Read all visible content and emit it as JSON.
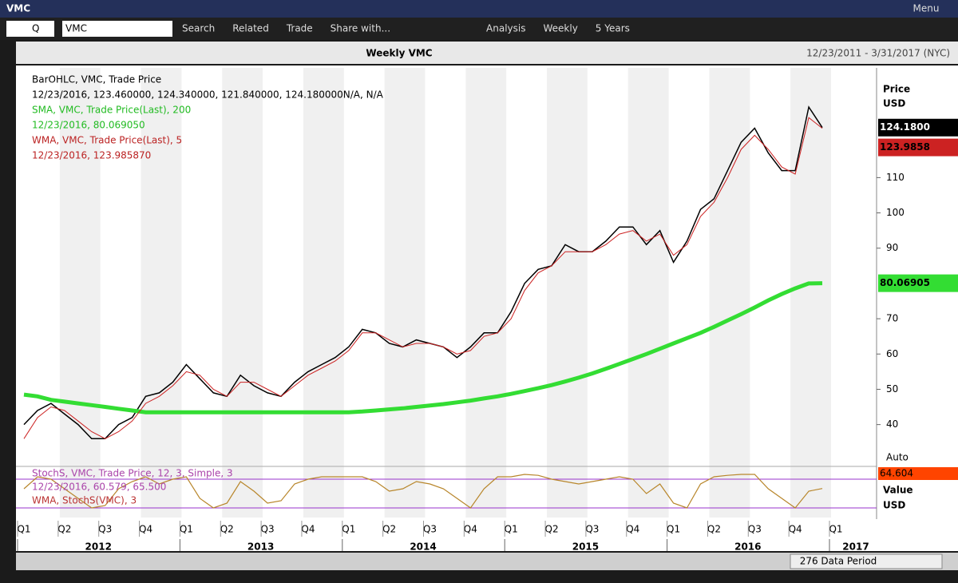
{
  "window": {
    "title": "VMC",
    "menu": "Menu"
  },
  "toolbar": {
    "security_type": "Q",
    "ticker": "VMC",
    "buttons": [
      "Search",
      "Related",
      "Trade",
      "Share with...",
      "Analysis",
      "Weekly",
      "5 Years"
    ]
  },
  "header": {
    "title": "Weekly VMC",
    "range": "12/23/2011 - 3/31/2017 (NYC)"
  },
  "chart_data": {
    "type": "line",
    "legend": [
      "BarOHLC, VMC, Trade Price",
      "12/23/2016, 123.460000, 124.340000, 121.840000, 124.180000N/A, N/A",
      "SMA, VMC, Trade Price(Last), 200",
      "12/23/2016, 80.069050",
      "WMA, VMC, Trade Price(Last), 5",
      "12/23/2016, 123.985870"
    ],
    "y_title": [
      "Price",
      "USD"
    ],
    "categories": [
      "Q1",
      null,
      null,
      "Q2",
      null,
      null,
      "Q3",
      null,
      null,
      "Q4",
      null,
      null,
      "Q1",
      null,
      null,
      "Q2",
      null,
      null,
      "Q3",
      null,
      null,
      "Q4",
      null,
      null,
      "Q1",
      null,
      null,
      "Q2",
      null,
      null,
      "Q3",
      null,
      null,
      "Q4",
      null,
      null,
      "Q1",
      null,
      null,
      "Q2",
      null,
      null,
      "Q3",
      null,
      null,
      "Q4",
      null,
      null,
      "Q1",
      null,
      null,
      "Q2",
      null,
      null,
      "Q3",
      null,
      null,
      "Q4",
      null,
      null,
      "Q1"
    ],
    "years": [
      "2012",
      "2013",
      "2014",
      "2015",
      "2016",
      "2017"
    ],
    "ylim": [
      28.6,
      141.1
    ],
    "yticks": [
      40,
      50,
      60,
      70,
      90,
      100,
      110
    ],
    "series": [
      {
        "name": "VMC",
        "color": "#000000",
        "width": 1.5,
        "tag": "124.1800",
        "values": [
          40,
          44,
          46,
          43,
          40,
          36,
          36,
          40,
          42,
          48,
          49,
          52,
          57,
          53,
          49,
          48,
          54,
          51,
          49,
          48,
          52,
          55,
          57,
          59,
          62,
          67,
          66,
          63,
          62,
          64,
          63,
          62,
          59,
          62,
          66,
          66,
          72,
          80,
          84,
          85,
          91,
          89,
          89,
          92,
          96,
          96,
          91,
          95,
          86,
          92,
          101,
          104,
          112,
          120,
          124,
          117,
          112,
          112,
          130,
          124.18,
          null
        ]
      },
      {
        "name": "SMA",
        "color": "#33dd33",
        "width": 5,
        "tag": "80.06905",
        "values": [
          48.5,
          48,
          47,
          46.5,
          46,
          45.5,
          45,
          44.5,
          44,
          43.5,
          43.5,
          43.5,
          43.5,
          43.5,
          43.5,
          43.5,
          43.5,
          43.5,
          43.5,
          43.5,
          43.5,
          43.5,
          43.5,
          43.5,
          43.5,
          43.7,
          44,
          44.3,
          44.6,
          45,
          45.4,
          45.8,
          46.3,
          46.8,
          47.4,
          48,
          48.7,
          49.5,
          50.3,
          51.2,
          52.2,
          53.3,
          54.5,
          55.8,
          57.2,
          58.6,
          60,
          61.5,
          63,
          64.5,
          66,
          67.7,
          69.5,
          71.3,
          73.2,
          75.2,
          77,
          78.6,
          80,
          80.07,
          null
        ]
      },
      {
        "name": "WMA",
        "color": "#cc2222",
        "width": 1,
        "tag": "123.9858",
        "values": [
          36,
          42,
          45,
          44,
          41,
          38,
          36,
          38,
          41,
          46,
          48,
          51,
          55,
          54,
          50,
          48,
          52,
          52,
          50,
          48,
          51,
          54,
          56,
          58,
          61,
          66,
          66,
          64,
          62,
          63,
          63,
          62,
          60,
          61,
          65,
          66,
          70,
          78,
          83,
          85,
          89,
          89,
          89,
          91,
          94,
          95,
          92,
          94,
          88,
          91,
          99,
          103,
          110,
          118,
          122,
          118,
          113,
          111,
          127,
          123.99,
          null
        ]
      }
    ]
  },
  "stoch_data": {
    "type": "line",
    "legend": [
      "StochS, VMC, Trade Price, 12, 3, Simple, 3",
      "12/23/2016, 60.579, 65.500",
      "WMA, StochS(VMC), 3"
    ],
    "y_title": [
      "Value",
      "USD"
    ],
    "auto": "Auto",
    "ylim": [
      0,
      100
    ],
    "levels": [
      20,
      80
    ],
    "level_color": "#9933cc",
    "series": [
      {
        "name": "StochS",
        "color": "#b8862b",
        "tag": "64.604",
        "values": [
          60,
          85,
          80,
          60,
          40,
          20,
          25,
          60,
          75,
          85,
          70,
          80,
          85,
          40,
          20,
          30,
          75,
          55,
          30,
          35,
          70,
          80,
          85,
          85,
          85,
          85,
          75,
          55,
          60,
          75,
          70,
          60,
          40,
          20,
          60,
          85,
          85,
          90,
          88,
          80,
          75,
          70,
          75,
          80,
          85,
          80,
          50,
          70,
          30,
          20,
          70,
          85,
          88,
          90,
          90,
          60,
          40,
          20,
          55,
          60.58,
          null
        ]
      }
    ]
  },
  "footer": {
    "data_period": "276 Data Period"
  }
}
